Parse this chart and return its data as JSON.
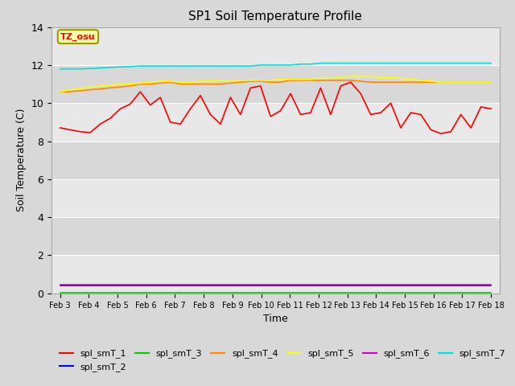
{
  "title": "SP1 Soil Temperature Profile",
  "xlabel": "Time",
  "ylabel": "Soil Temperature (C)",
  "annotation": "TZ_osu",
  "ylim": [
    0,
    14
  ],
  "yticks": [
    0,
    2,
    4,
    6,
    8,
    10,
    12,
    14
  ],
  "x_labels": [
    "Feb 3",
    "Feb 4",
    "Feb 5",
    "Feb 6",
    "Feb 7",
    "Feb 8",
    "Feb 9",
    "Feb 10",
    "Feb 11",
    "Feb 12",
    "Feb 13",
    "Feb 14",
    "Feb 15",
    "Feb 16",
    "Feb 17",
    "Feb 18"
  ],
  "series_order": [
    "spl_smT_1",
    "spl_smT_2",
    "spl_smT_3",
    "spl_smT_4",
    "spl_smT_5",
    "spl_smT_6",
    "spl_smT_7"
  ],
  "series": {
    "spl_smT_1": {
      "color": "#ff0000",
      "values": [
        8.7,
        8.6,
        8.5,
        8.45,
        8.9,
        9.2,
        9.7,
        9.95,
        10.6,
        9.9,
        10.3,
        9.0,
        8.9,
        9.7,
        10.4,
        9.4,
        8.9,
        10.3,
        9.4,
        10.8,
        10.9,
        9.3,
        9.6,
        10.5,
        9.4,
        9.5,
        10.8,
        9.4,
        10.9,
        11.1,
        10.5,
        9.4,
        9.5,
        10.0,
        8.7,
        9.5,
        9.4,
        8.6,
        8.4,
        8.5,
        9.4,
        8.7,
        9.8,
        9.7
      ]
    },
    "spl_smT_2": {
      "color": "#0000ff",
      "values": [
        0.4,
        0.4,
        0.4,
        0.4,
        0.4,
        0.4,
        0.4,
        0.4,
        0.4,
        0.4,
        0.4,
        0.4,
        0.4,
        0.4,
        0.4,
        0.4,
        0.4,
        0.4,
        0.4,
        0.4,
        0.4,
        0.4,
        0.4,
        0.4,
        0.4,
        0.4,
        0.4,
        0.4,
        0.4,
        0.4,
        0.4,
        0.4,
        0.4,
        0.4,
        0.4,
        0.4,
        0.4,
        0.4,
        0.4,
        0.4,
        0.4,
        0.4,
        0.4,
        0.4
      ]
    },
    "spl_smT_3": {
      "color": "#00cc00",
      "values": [
        0.05,
        0.05,
        0.05,
        0.05,
        0.05,
        0.05,
        0.05,
        0.05,
        0.05,
        0.05,
        0.05,
        0.05,
        0.05,
        0.05,
        0.05,
        0.05,
        0.05,
        0.05,
        0.05,
        0.05,
        0.05,
        0.05,
        0.05,
        0.05,
        0.05,
        0.05,
        0.05,
        0.05,
        0.05,
        0.05,
        0.05,
        0.05,
        0.05,
        0.05,
        0.05,
        0.05,
        0.05,
        0.05,
        0.05,
        0.05,
        0.05,
        0.05,
        0.05,
        0.05
      ]
    },
    "spl_smT_4": {
      "color": "#ff8800",
      "values": [
        10.6,
        10.6,
        10.65,
        10.7,
        10.75,
        10.8,
        10.85,
        10.9,
        11.0,
        11.0,
        11.05,
        11.1,
        11.0,
        11.0,
        11.0,
        11.0,
        11.0,
        11.05,
        11.1,
        11.15,
        11.15,
        11.1,
        11.1,
        11.2,
        11.2,
        11.2,
        11.2,
        11.2,
        11.2,
        11.2,
        11.15,
        11.1,
        11.1,
        11.1,
        11.1,
        11.1,
        11.1,
        11.1,
        11.1,
        11.1,
        11.1,
        11.1,
        11.1,
        11.1
      ]
    },
    "spl_smT_5": {
      "color": "#ffff00",
      "values": [
        10.6,
        10.7,
        10.75,
        10.85,
        10.9,
        10.95,
        11.0,
        11.0,
        11.05,
        11.1,
        11.15,
        11.15,
        11.1,
        11.1,
        11.15,
        11.15,
        11.2,
        11.2,
        11.2,
        11.2,
        11.2,
        11.2,
        11.25,
        11.25,
        11.25,
        11.25,
        11.3,
        11.3,
        11.35,
        11.4,
        11.4,
        11.4,
        11.35,
        11.35,
        11.3,
        11.25,
        11.2,
        11.15,
        11.1,
        11.1,
        11.1,
        11.1,
        11.1,
        11.1
      ]
    },
    "spl_smT_6": {
      "color": "#cc00cc",
      "values": [
        0.45,
        0.45,
        0.45,
        0.45,
        0.45,
        0.45,
        0.45,
        0.45,
        0.45,
        0.45,
        0.45,
        0.45,
        0.45,
        0.45,
        0.45,
        0.45,
        0.45,
        0.45,
        0.45,
        0.45,
        0.45,
        0.45,
        0.45,
        0.45,
        0.45,
        0.45,
        0.45,
        0.45,
        0.45,
        0.45,
        0.45,
        0.45,
        0.45,
        0.45,
        0.45,
        0.45,
        0.45,
        0.45,
        0.45,
        0.45,
        0.45,
        0.45,
        0.45,
        0.45
      ]
    },
    "spl_smT_7": {
      "color": "#00dddd",
      "values": [
        11.8,
        11.8,
        11.8,
        11.82,
        11.85,
        11.88,
        11.9,
        11.92,
        11.95,
        11.95,
        11.95,
        11.95,
        11.95,
        11.95,
        11.95,
        11.95,
        11.95,
        11.95,
        11.95,
        11.95,
        12.0,
        12.0,
        12.0,
        12.0,
        12.05,
        12.05,
        12.1,
        12.1,
        12.1,
        12.1,
        12.1,
        12.1,
        12.1,
        12.1,
        12.1,
        12.1,
        12.1,
        12.1,
        12.1,
        12.1,
        12.1,
        12.1,
        12.1,
        12.1
      ]
    }
  },
  "fig_bg_color": "#d8d8d8",
  "plot_bg_color": "#e8e8e8",
  "band_colors": [
    "#e0e0e0",
    "#d0d0d0"
  ],
  "grid_color": "#ffffff"
}
